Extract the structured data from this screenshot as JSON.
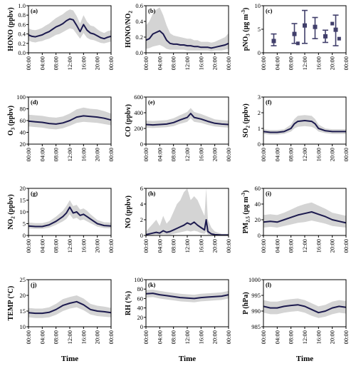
{
  "colors": {
    "line": "#1c1a4e",
    "band": "#d4d4d4",
    "axis": "#000000",
    "box": "#413f6b"
  },
  "time_ticks": [
    "00:00",
    "04:00",
    "08:00",
    "12:00",
    "16:00",
    "20:00",
    "00:00"
  ],
  "time_label": "Time",
  "chart_data": [
    {
      "id": "a",
      "panel_label": "(a)",
      "type": "line",
      "ylabel_parts": [
        {
          "t": "HONO (ppbv)"
        }
      ],
      "ylim": [
        0.0,
        1.0
      ],
      "yticks": [
        0.0,
        0.2,
        0.4,
        0.6,
        0.8,
        1.0
      ],
      "yfmt": 1,
      "x_hours": [
        0,
        1,
        2,
        3,
        4,
        5,
        6,
        7,
        8,
        9,
        10,
        11,
        12,
        13,
        14,
        15,
        16,
        17,
        18,
        19,
        20,
        21,
        22,
        23,
        24
      ],
      "y": [
        0.38,
        0.35,
        0.34,
        0.36,
        0.38,
        0.42,
        0.45,
        0.5,
        0.55,
        0.58,
        0.62,
        0.68,
        0.72,
        0.7,
        0.58,
        0.45,
        0.6,
        0.48,
        0.42,
        0.4,
        0.36,
        0.32,
        0.3,
        0.33,
        0.35
      ],
      "lower": [
        0.26,
        0.23,
        0.22,
        0.24,
        0.25,
        0.28,
        0.3,
        0.34,
        0.38,
        0.4,
        0.44,
        0.48,
        0.52,
        0.5,
        0.4,
        0.3,
        0.42,
        0.32,
        0.28,
        0.27,
        0.24,
        0.21,
        0.2,
        0.22,
        0.24
      ],
      "upper": [
        0.52,
        0.49,
        0.48,
        0.5,
        0.53,
        0.58,
        0.62,
        0.68,
        0.74,
        0.78,
        0.82,
        0.88,
        0.92,
        0.9,
        0.78,
        0.62,
        0.8,
        0.66,
        0.58,
        0.56,
        0.5,
        0.45,
        0.42,
        0.46,
        0.48
      ]
    },
    {
      "id": "b",
      "panel_label": "(b)",
      "type": "line",
      "ylabel_parts": [
        {
          "t": "HONO/NO"
        },
        {
          "t": "2",
          "sub": true
        }
      ],
      "ylim": [
        0.0,
        0.6
      ],
      "yticks": [
        0.0,
        0.2,
        0.4,
        0.6
      ],
      "yfmt": 1,
      "x_hours": [
        0,
        1,
        2,
        3,
        4,
        5,
        6,
        7,
        8,
        9,
        10,
        11,
        12,
        13,
        14,
        15,
        16,
        17,
        18,
        19,
        20,
        21,
        22,
        23,
        24
      ],
      "y": [
        0.16,
        0.18,
        0.24,
        0.26,
        0.28,
        0.24,
        0.16,
        0.12,
        0.11,
        0.11,
        0.1,
        0.1,
        0.09,
        0.09,
        0.08,
        0.08,
        0.07,
        0.07,
        0.07,
        0.06,
        0.07,
        0.08,
        0.09,
        0.1,
        0.12
      ],
      "lower": [
        0.05,
        0.06,
        0.08,
        0.09,
        0.1,
        0.08,
        0.05,
        0.04,
        0.04,
        0.04,
        0.04,
        0.04,
        0.03,
        0.03,
        0.03,
        0.03,
        0.03,
        0.03,
        0.03,
        0.02,
        0.03,
        0.03,
        0.03,
        0.04,
        0.05
      ],
      "upper": [
        0.35,
        0.4,
        0.5,
        0.55,
        0.58,
        0.48,
        0.35,
        0.25,
        0.22,
        0.21,
        0.2,
        0.19,
        0.18,
        0.18,
        0.16,
        0.16,
        0.14,
        0.14,
        0.14,
        0.13,
        0.14,
        0.16,
        0.18,
        0.2,
        0.25
      ]
    },
    {
      "id": "c",
      "panel_label": "(c)",
      "type": "box",
      "ylabel_parts": [
        {
          "t": "pNO"
        },
        {
          "t": "3",
          "sub": true
        },
        {
          "t": " (μg m"
        },
        {
          "t": "-3",
          "sup": true
        },
        {
          "t": ")"
        }
      ],
      "ylim": [
        0,
        10
      ],
      "yticks": [
        0,
        5,
        10
      ],
      "yfmt": 0,
      "boxes": [
        {
          "x": 3,
          "mean": 2.5,
          "low": 1.5,
          "high": 4.0
        },
        {
          "x": 9,
          "mean": 4.0,
          "low": 2.0,
          "high": 6.2
        },
        {
          "x": 12,
          "mean": 5.8,
          "low": 2.0,
          "high": 9.0
        },
        {
          "x": 15,
          "mean": 5.5,
          "low": 3.0,
          "high": 7.5
        },
        {
          "x": 18,
          "mean": 3.5,
          "low": 2.2,
          "high": 4.8
        },
        {
          "x": 21,
          "mean": 4.9,
          "low": 1.5,
          "high": 8.0
        }
      ],
      "markers": [
        {
          "x": 10,
          "y": 2.0
        },
        {
          "x": 20,
          "y": 6.2
        },
        {
          "x": 22,
          "y": 3.0
        }
      ]
    },
    {
      "id": "d",
      "panel_label": "(d)",
      "type": "line",
      "ylabel_parts": [
        {
          "t": "O"
        },
        {
          "t": "3",
          "sub": true
        },
        {
          "t": " (ppbv)"
        }
      ],
      "ylim": [
        20,
        100
      ],
      "yticks": [
        20,
        40,
        60,
        80,
        100
      ],
      "yfmt": 0,
      "x_hours": [
        0,
        2,
        4,
        6,
        8,
        10,
        12,
        14,
        16,
        18,
        20,
        22,
        24
      ],
      "y": [
        59,
        58,
        57,
        55,
        54,
        56,
        60,
        66,
        68,
        67,
        66,
        64,
        61
      ],
      "lower": [
        50,
        49,
        48,
        46,
        45,
        47,
        51,
        56,
        58,
        57,
        56,
        54,
        52
      ],
      "upper": [
        70,
        69,
        68,
        66,
        65,
        67,
        72,
        79,
        82,
        80,
        79,
        76,
        72
      ]
    },
    {
      "id": "e",
      "panel_label": "(e)",
      "type": "line",
      "ylabel_parts": [
        {
          "t": "CO (ppbv)"
        }
      ],
      "ylim": [
        0,
        600
      ],
      "yticks": [
        0,
        200,
        400,
        600
      ],
      "yfmt": 0,
      "x_hours": [
        0,
        2,
        4,
        6,
        8,
        10,
        12,
        13,
        14,
        16,
        18,
        20,
        22,
        24
      ],
      "y": [
        250,
        245,
        250,
        255,
        275,
        310,
        340,
        390,
        340,
        320,
        290,
        265,
        255,
        250
      ],
      "lower": [
        210,
        205,
        210,
        215,
        230,
        260,
        285,
        330,
        285,
        270,
        245,
        225,
        215,
        210
      ],
      "upper": [
        300,
        295,
        300,
        305,
        330,
        370,
        410,
        460,
        410,
        385,
        350,
        315,
        305,
        300
      ]
    },
    {
      "id": "f",
      "panel_label": "(f)",
      "type": "line",
      "ylabel_parts": [
        {
          "t": "SO"
        },
        {
          "t": "2",
          "sub": true
        },
        {
          "t": " (ppbv)"
        }
      ],
      "ylim": [
        0,
        3
      ],
      "yticks": [
        0,
        1,
        2,
        3
      ],
      "yfmt": 0,
      "x_hours": [
        0,
        2,
        4,
        6,
        8,
        9,
        10,
        12,
        14,
        15,
        16,
        18,
        20,
        22,
        24
      ],
      "y": [
        0.8,
        0.75,
        0.75,
        0.8,
        1.0,
        1.3,
        1.45,
        1.5,
        1.45,
        1.3,
        1.0,
        0.85,
        0.8,
        0.8,
        0.8
      ],
      "lower": [
        0.65,
        0.6,
        0.6,
        0.65,
        0.8,
        1.0,
        1.1,
        1.15,
        1.1,
        1.0,
        0.8,
        0.7,
        0.65,
        0.65,
        0.65
      ],
      "upper": [
        0.95,
        0.9,
        0.9,
        0.95,
        1.25,
        1.6,
        1.8,
        1.85,
        1.8,
        1.6,
        1.25,
        1.0,
        0.95,
        0.95,
        0.95
      ]
    },
    {
      "id": "g",
      "panel_label": "(g)",
      "type": "line",
      "ylabel_parts": [
        {
          "t": "NO"
        },
        {
          "t": "2",
          "sub": true
        },
        {
          "t": " (ppbv)"
        }
      ],
      "ylim": [
        0,
        20
      ],
      "yticks": [
        0,
        5,
        10,
        15,
        20
      ],
      "yfmt": 0,
      "x_hours": [
        0,
        2,
        4,
        6,
        8,
        10,
        11,
        12,
        13,
        14,
        15,
        16,
        17,
        18,
        20,
        22,
        24
      ],
      "y": [
        4.0,
        3.8,
        3.8,
        4.5,
        6.0,
        8.0,
        9.5,
        12.0,
        9.5,
        10.0,
        8.5,
        9.0,
        8.0,
        7.0,
        5.0,
        4.2,
        4.0
      ],
      "lower": [
        3.0,
        2.8,
        2.8,
        3.3,
        4.5,
        6.0,
        7.0,
        9.0,
        7.0,
        7.5,
        6.4,
        6.8,
        6.0,
        5.2,
        3.7,
        3.1,
        3.0
      ],
      "upper": [
        5.5,
        5.2,
        5.2,
        6.0,
        8.0,
        10.5,
        12.5,
        15.0,
        12.5,
        13.0,
        11.0,
        11.5,
        10.5,
        9.0,
        6.6,
        5.6,
        5.5
      ]
    },
    {
      "id": "h",
      "panel_label": "(h)",
      "type": "line",
      "ylabel_parts": [
        {
          "t": "NO (ppbv)"
        }
      ],
      "ylim": [
        0,
        6
      ],
      "yticks": [
        0,
        2,
        4,
        6
      ],
      "yfmt": 0,
      "x_hours": [
        0,
        1,
        2,
        3,
        4,
        5,
        6,
        7,
        8,
        9,
        10,
        11,
        12,
        13,
        14,
        15,
        16,
        17,
        17.5,
        18,
        19,
        20,
        22,
        24
      ],
      "y": [
        0.1,
        0.2,
        0.3,
        0.4,
        0.3,
        0.6,
        0.4,
        0.5,
        0.7,
        0.9,
        1.1,
        1.3,
        1.6,
        1.4,
        1.7,
        1.3,
        1.0,
        0.7,
        2.0,
        0.5,
        0.2,
        0.1,
        0.05,
        0.05
      ],
      "lower": [
        0.0,
        0.0,
        0.05,
        0.1,
        0.05,
        0.15,
        0.1,
        0.1,
        0.2,
        0.3,
        0.4,
        0.5,
        0.6,
        0.5,
        0.6,
        0.5,
        0.3,
        0.2,
        0.5,
        0.1,
        0.05,
        0.0,
        0.0,
        0.0
      ],
      "upper": [
        0.5,
        1.0,
        1.5,
        2.0,
        1.2,
        2.5,
        1.5,
        2.0,
        3.0,
        4.0,
        4.5,
        5.5,
        6.0,
        4.5,
        5.0,
        4.5,
        3.5,
        2.5,
        6.0,
        2.0,
        1.0,
        0.5,
        0.2,
        0.2
      ]
    },
    {
      "id": "i",
      "panel_label": "(i)",
      "type": "line",
      "ylabel_parts": [
        {
          "t": "PM"
        },
        {
          "t": "2.5",
          "sub": true
        },
        {
          "t": " (μg m"
        },
        {
          "t": "-3",
          "sup": true
        },
        {
          "t": ")"
        }
      ],
      "ylim": [
        0,
        60
      ],
      "yticks": [
        0,
        20,
        40,
        60
      ],
      "yfmt": 0,
      "x_hours": [
        0,
        2,
        4,
        6,
        8,
        10,
        12,
        14,
        16,
        18,
        20,
        22,
        24
      ],
      "y": [
        17,
        18,
        17,
        20,
        23,
        26,
        28,
        30,
        27,
        24,
        20,
        18,
        16
      ],
      "lower": [
        10,
        11,
        10,
        12,
        14,
        16,
        17,
        19,
        17,
        15,
        12,
        11,
        10
      ],
      "upper": [
        26,
        27,
        26,
        29,
        33,
        37,
        40,
        42,
        38,
        34,
        29,
        27,
        25
      ]
    },
    {
      "id": "j",
      "panel_label": "(j)",
      "type": "line",
      "ylabel_parts": [
        {
          "t": "TEMP (°C)"
        }
      ],
      "ylim": [
        10,
        25
      ],
      "yticks": [
        10,
        15,
        20,
        25
      ],
      "yfmt": 0,
      "x_hours": [
        0,
        2,
        4,
        6,
        8,
        10,
        12,
        14,
        16,
        18,
        20,
        22,
        24
      ],
      "y": [
        14.5,
        14.3,
        14.3,
        14.6,
        15.5,
        16.8,
        17.5,
        18.0,
        17.0,
        15.5,
        15.0,
        14.8,
        14.5
      ],
      "lower": [
        13.0,
        12.8,
        12.8,
        13.0,
        13.8,
        15.0,
        15.8,
        16.2,
        15.3,
        13.9,
        13.4,
        13.2,
        13.0
      ],
      "upper": [
        16.0,
        15.8,
        15.8,
        16.2,
        17.3,
        18.8,
        19.5,
        20.0,
        19.0,
        17.3,
        16.7,
        16.4,
        16.0
      ]
    },
    {
      "id": "k",
      "panel_label": "(k)",
      "type": "line",
      "ylabel_parts": [
        {
          "t": "RH (%)"
        }
      ],
      "ylim": [
        0,
        100
      ],
      "yticks": [
        0,
        20,
        40,
        60,
        80,
        100
      ],
      "yfmt": 0,
      "x_hours": [
        0,
        2,
        4,
        6,
        8,
        10,
        12,
        14,
        16,
        18,
        20,
        22,
        24
      ],
      "y": [
        70,
        71,
        68,
        66,
        64,
        62,
        61,
        60,
        62,
        63,
        64,
        65,
        68
      ],
      "lower": [
        62,
        63,
        60,
        58,
        56,
        54,
        53,
        52,
        54,
        55,
        56,
        57,
        60
      ],
      "upper": [
        78,
        79,
        76,
        74,
        72,
        70,
        69,
        68,
        70,
        71,
        72,
        73,
        76
      ]
    },
    {
      "id": "l",
      "panel_label": "(l)",
      "type": "line",
      "ylabel_parts": [
        {
          "t": "P (hPa)"
        }
      ],
      "ylim": [
        985,
        1000
      ],
      "yticks": [
        985,
        990,
        995,
        1000
      ],
      "yfmt": 0,
      "x_hours": [
        0,
        2,
        4,
        6,
        8,
        10,
        12,
        14,
        16,
        18,
        20,
        22,
        24
      ],
      "y": [
        991.5,
        991.0,
        991.0,
        991.5,
        991.8,
        992.0,
        991.5,
        990.5,
        989.5,
        990.0,
        991.0,
        991.5,
        991.2
      ],
      "lower": [
        989.5,
        989.0,
        989.0,
        989.5,
        989.8,
        990.0,
        989.5,
        988.5,
        987.8,
        988.2,
        989.0,
        989.5,
        989.2
      ],
      "upper": [
        993.5,
        993.0,
        993.0,
        993.5,
        993.8,
        994.0,
        993.5,
        992.5,
        991.5,
        992.0,
        993.0,
        993.5,
        993.2
      ]
    }
  ]
}
